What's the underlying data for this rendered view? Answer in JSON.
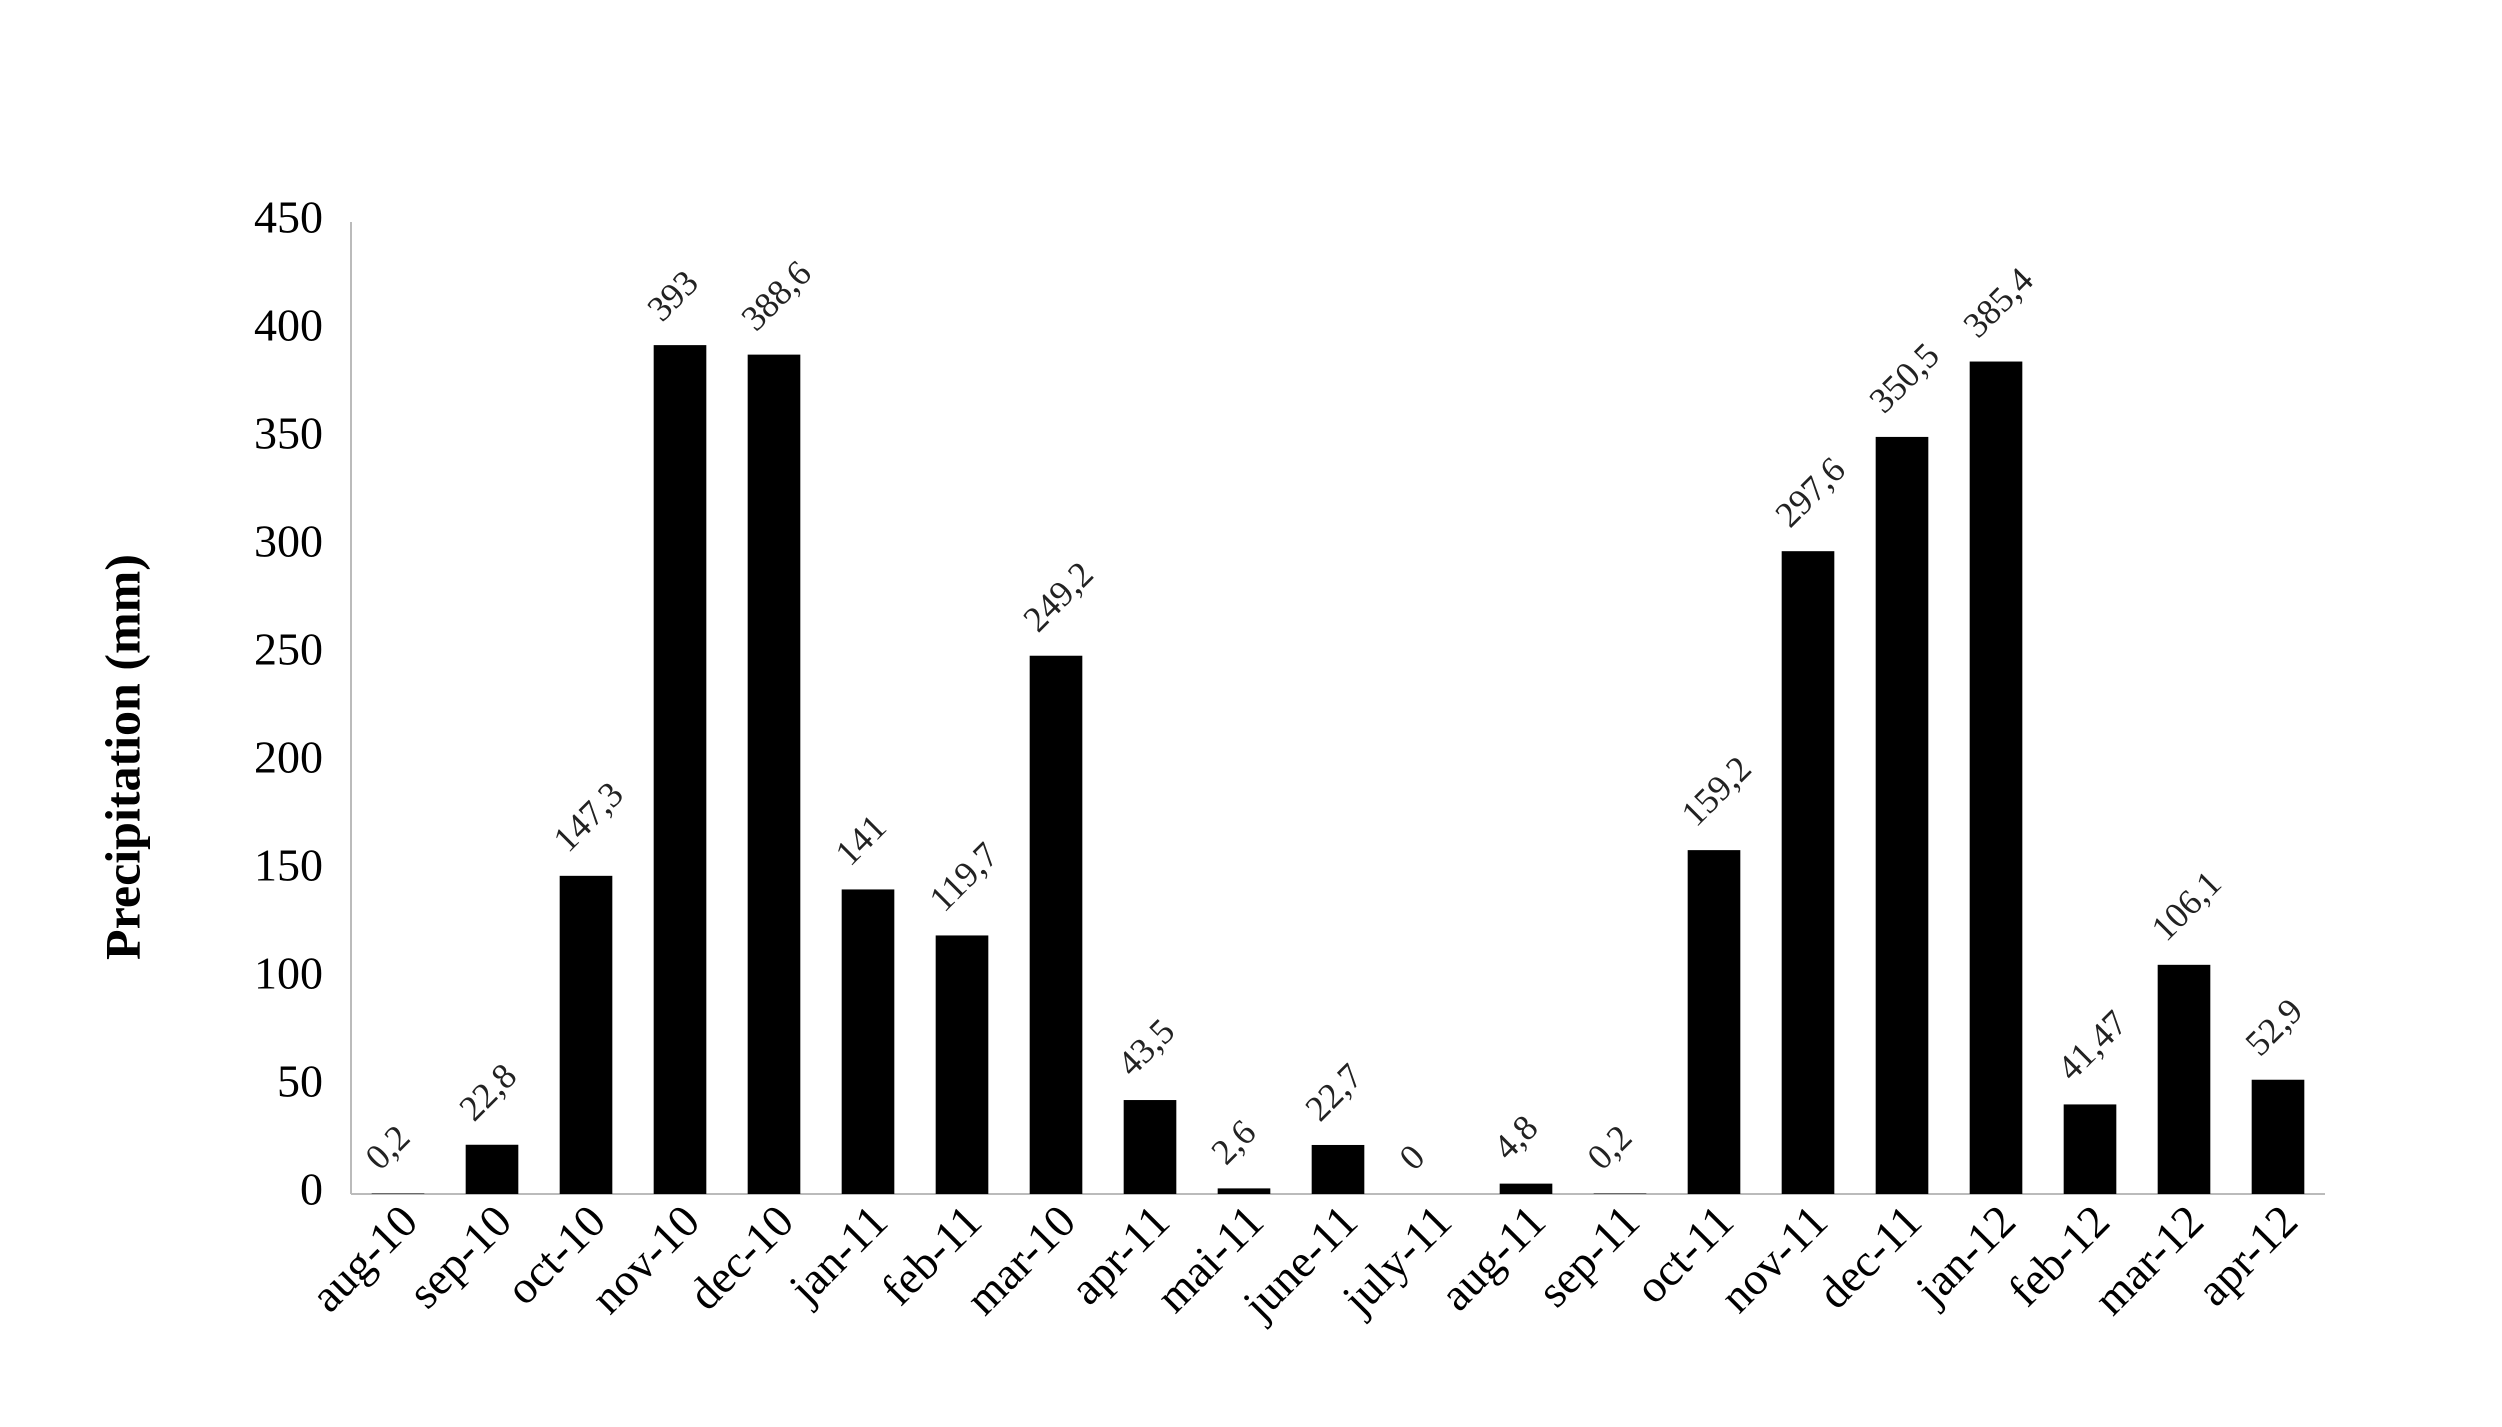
{
  "chart_data": {
    "type": "bar",
    "y_label": "Precipitation (mm)",
    "categories": [
      "aug-10",
      "sep-10",
      "oct-10",
      "nov-10",
      "dec-10",
      "jan-11",
      "feb-11",
      "mar-10",
      "apr-11",
      "mai-11",
      "june-11",
      "july-11",
      "aug-11",
      "sep-11",
      "oct-11",
      "nov-11",
      "dec-11",
      "jan-12",
      "feb-12",
      "mar-12",
      "apr-12"
    ],
    "values": [
      0.2,
      22.8,
      147.3,
      393,
      388.6,
      141,
      119.7,
      249.2,
      43.5,
      2.6,
      22.7,
      0,
      4.8,
      0.2,
      159.2,
      297.6,
      350.5,
      385.4,
      41.47,
      106.1,
      52.9
    ],
    "value_labels": [
      "0,2",
      "22,8",
      "147,3",
      "393",
      "388,6",
      "141",
      "119,7",
      "249,2",
      "43,5",
      "2,6",
      "22,7",
      "0",
      "4,8",
      "0,2",
      "159,2",
      "297,6",
      "350,5",
      "385,4",
      "41,47",
      "106,1",
      "52,9"
    ],
    "color": "#000000",
    "ylim": [
      0,
      450
    ],
    "yticks": [
      0,
      50,
      100,
      150,
      200,
      250,
      300,
      350,
      400,
      450
    ],
    "grid": false
  }
}
